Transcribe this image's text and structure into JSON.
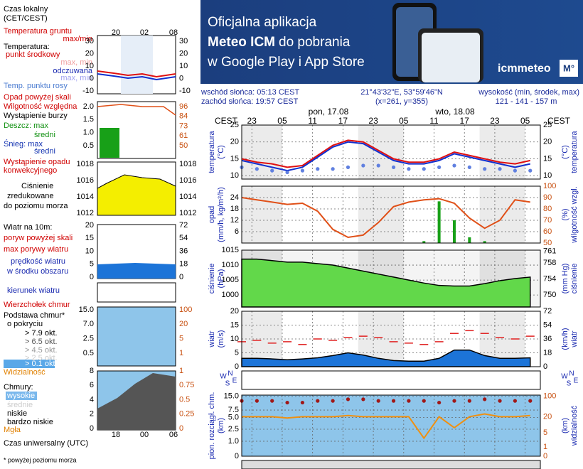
{
  "banner": {
    "line1": "Oficjalna aplikacja",
    "line2a": "Meteo ICM",
    "line2b": "do pobrania",
    "line3": "w Google Play i App Store",
    "logo": "icmmeteo",
    "badge": "M°"
  },
  "info": {
    "sunrise": "wschód słońca: 05:13 CEST",
    "sunset": "zachód słońca: 19:57 CEST",
    "coords": "21°43'32\"E, 53°59'46\"N",
    "grid": "(x=261, y=355)",
    "height_label": "wysokość (min, środek, max)",
    "height_values": "121 - 141 - 157 m"
  },
  "legend": {
    "items": [
      "Czas lokalny",
      "(CET/CEST)",
      "Temperatura gruntu",
      "max/min",
      "Temperatura:",
      "punkt środkowy",
      "max, min",
      "odczuwana",
      "max, min",
      "Temp. punktu rosy",
      "Opad powyżej skali",
      "Wilgotność względna",
      "Wystąpienie burzy",
      "Deszcz: max",
      "średni",
      "Śnieg: max",
      "średni",
      "Wystąpienie opadu",
      "konwekcyjnego",
      "Ciśnienie",
      "zredukowane",
      "do poziomu morza",
      "Wiatr na 10m:",
      "poryw powyżej skali",
      "max porywy wiatru",
      "prędkość wiatru",
      "w środku obszaru",
      "kierunek wiatru",
      "Wierzchołek chmur",
      "Podstawa chmur*",
      "o pokryciu",
      "> 7.9 okt.",
      "> 6.5 okt.",
      "> 4.5 okt.",
      "> 2.5 okt.",
      "> 0.1 okt.",
      "Widzialność",
      "Chmury:",
      "wysokie",
      "średnie",
      "niskie",
      "bardzo niskie",
      "Mgła",
      "Czas uniwersalny (UTC)",
      "* powyżej poziomu morza"
    ],
    "top_ticks": [
      "20",
      "02",
      "08"
    ],
    "bottom_ticks": [
      "18",
      "00",
      "06"
    ],
    "ticks_left": [
      [
        "30",
        "20",
        "10",
        "0",
        "-10"
      ],
      [
        "2.0",
        "1.5",
        "1.0",
        "0.5"
      ],
      [
        "1018",
        "1016",
        "1014",
        "1012"
      ],
      [
        "20",
        "15",
        "10",
        "5",
        "0"
      ],
      [
        "15.0",
        "7.0",
        "2.5",
        "0.5"
      ],
      [
        "8",
        "6",
        "4",
        "2",
        "0"
      ]
    ],
    "ticks_right": [
      [
        "30",
        "20",
        "10",
        "0",
        "-10"
      ],
      [
        "96",
        "84",
        "73",
        "61",
        "50"
      ],
      [
        "1018",
        "1016",
        "1014",
        "1012"
      ],
      [
        "72",
        "54",
        "36",
        "18",
        "0"
      ],
      [
        "100",
        "20",
        "5",
        "1"
      ],
      [
        "1",
        "0.75",
        "0.5",
        "0.25",
        "0"
      ]
    ]
  },
  "chart_data": {
    "type": "meteogram",
    "tz_left": "CEST",
    "tz_right": "CEST",
    "day1": "pon, 17.08",
    "day2": "wto, 18.08",
    "compass": {
      "n": "N",
      "e": "E",
      "s": "S",
      "w": "W"
    },
    "grid": true,
    "xlim": [
      -3,
      56
    ],
    "xticks": [
      {
        "value": -1,
        "label": "23"
      },
      {
        "value": 5,
        "label": "05"
      },
      {
        "value": 11,
        "label": "11"
      },
      {
        "value": 17,
        "label": "17"
      },
      {
        "value": 23,
        "label": "23"
      },
      {
        "value": 29,
        "label": "05"
      },
      {
        "value": 35,
        "label": "11"
      },
      {
        "value": 41,
        "label": "17"
      },
      {
        "value": 47,
        "label": "23"
      },
      {
        "value": 53,
        "label": "05"
      }
    ],
    "x": [
      -3,
      0,
      3,
      6,
      9,
      12,
      15,
      18,
      21,
      24,
      27,
      30,
      33,
      36,
      39,
      42,
      45,
      48,
      51,
      54
    ],
    "panels": [
      {
        "ylabel": [
          "temperatura",
          "(°C)"
        ],
        "y2label": [
          "(°C)",
          "temperatura"
        ],
        "ylim": [
          9,
          25
        ],
        "yticks": [
          10,
          15,
          20,
          25
        ],
        "y2lim": [
          9,
          25
        ],
        "y2ticks": [
          10,
          15,
          20,
          25
        ],
        "series": [
          {
            "kind": "line",
            "color": "#e01010",
            "values": [
              15,
              14,
              13.5,
              12.5,
              13,
              16,
              19,
              20.5,
              20,
              17.5,
              15,
              14,
              14,
              15,
              17,
              16,
              15,
              14,
              13.5,
              14.5
            ]
          },
          {
            "kind": "line",
            "color": "#1030d0",
            "values": [
              14.5,
              13.5,
              12.5,
              11.5,
              12.5,
              15.5,
              18.5,
              20,
              19.5,
              17,
              14.5,
              13.5,
              13.5,
              14.5,
              16.5,
              15.5,
              14.5,
              13.5,
              12.5,
              13.5
            ]
          },
          {
            "kind": "dots",
            "color": "#6080e0",
            "values": [
              12.5,
              12,
              11.5,
              11,
              11.5,
              12,
              12,
              12.5,
              13,
              13,
              12.5,
              12,
              12,
              12.5,
              13,
              12.5,
              12,
              12,
              11.5,
              11.5
            ]
          }
        ]
      },
      {
        "ylabel": [
          "opad",
          "(mm/h, kg/m²/h)"
        ],
        "y2label": [
          "(%)",
          "wilgotność wzgl."
        ],
        "ylim": [
          0,
          30
        ],
        "yticks": [
          6,
          12,
          18,
          24
        ],
        "y2lim": [
          50,
          100
        ],
        "y2ticks": [
          50,
          60,
          70,
          80,
          90,
          100
        ],
        "series": [
          {
            "kind": "bars",
            "color": "#18a018",
            "values": [
              0,
              0,
              0,
              0,
              0,
              0,
              0,
              0,
              0,
              0,
              0,
              0,
              1,
              22,
              12,
              3,
              1,
              0,
              0,
              0
            ]
          },
          {
            "kind": "line",
            "color": "#e05018",
            "axis": "y2",
            "values": [
              90,
              88,
              86,
              84,
              85,
              78,
              62,
              55,
              57,
              68,
              82,
              86,
              88,
              89,
              85,
              72,
              63,
              70,
              88,
              86
            ]
          }
        ]
      },
      {
        "ylabel": [
          "ciśnienie",
          "(hPa)"
        ],
        "y2label": [
          "(mm Hg)",
          "ciśnienie"
        ],
        "ylim": [
          996,
          1015
        ],
        "yticks": [
          1000,
          1005,
          1010,
          1015
        ],
        "y2lim": [
          747,
          761.25
        ],
        "y2ticks": [
          750,
          754,
          758,
          761
        ],
        "series": [
          {
            "kind": "area",
            "color": "#62d84a",
            "values": [
              1012,
              1012,
              1011.5,
              1011,
              1011,
              1010.5,
              1010,
              1009,
              1008,
              1007,
              1006,
              1005,
              1004,
              1003.2,
              1003,
              1003,
              1003.8,
              1004.8,
              1005.5,
              1006
            ]
          }
        ]
      },
      {
        "ylabel": [
          "wiatr",
          "(m/s)"
        ],
        "y2label": [
          "(km/h)",
          "wiatr"
        ],
        "ylim": [
          0,
          20
        ],
        "yticks": [
          0,
          5,
          10,
          15,
          20
        ],
        "y2lim": [
          0,
          72
        ],
        "y2ticks": [
          0,
          18,
          36,
          54,
          72
        ],
        "series": [
          {
            "kind": "dashes",
            "color": "#e02020",
            "values": [
              9,
              9.5,
              8.5,
              9,
              8,
              10,
              9.5,
              10.5,
              11,
              10.5,
              9,
              8.5,
              8,
              9,
              12,
              13,
              12,
              10.5,
              10,
              11
            ]
          },
          {
            "kind": "area",
            "color": "#1c74d8",
            "values": [
              3,
              3,
              2.8,
              2.5,
              2.8,
              3.2,
              4,
              5,
              4.2,
              3,
              2.2,
              2,
              2,
              3,
              6,
              6,
              4,
              3,
              3,
              3.2
            ]
          }
        ]
      },
      {
        "ylabel": [
          "pion. rozciągł. chm.",
          "(km)"
        ],
        "y2label": [
          "(km)",
          "widzialność"
        ],
        "ylim": [
          0,
          16
        ],
        "yscale": "log1p",
        "yticks": [
          0,
          {
            "value": 1,
            "label": "1.0"
          },
          2.5,
          {
            "value": 5,
            "label": "5.0"
          },
          7.5,
          {
            "value": 15,
            "label": "15.0"
          }
        ],
        "y2lim": [
          0,
          110
        ],
        "y2scale": "log1p",
        "y2ticks": [
          0,
          1,
          5,
          20,
          100
        ],
        "series": [
          {
            "kind": "dots",
            "color": "#a01818",
            "values": [
              12,
              12,
              12,
              11,
              11,
              12,
              12,
              13,
              13,
              12,
              12,
              12,
              12,
              11,
              12,
              12,
              13,
              12,
              12,
              12
            ]
          },
          {
            "kind": "line",
            "color": "#f09010",
            "axis": "y2",
            "values": [
              20,
              20,
              20,
              18,
              20,
              20,
              20,
              22,
              20,
              20,
              20,
              20,
              3,
              20,
              8,
              20,
              25,
              20,
              20,
              22
            ]
          }
        ]
      }
    ]
  }
}
